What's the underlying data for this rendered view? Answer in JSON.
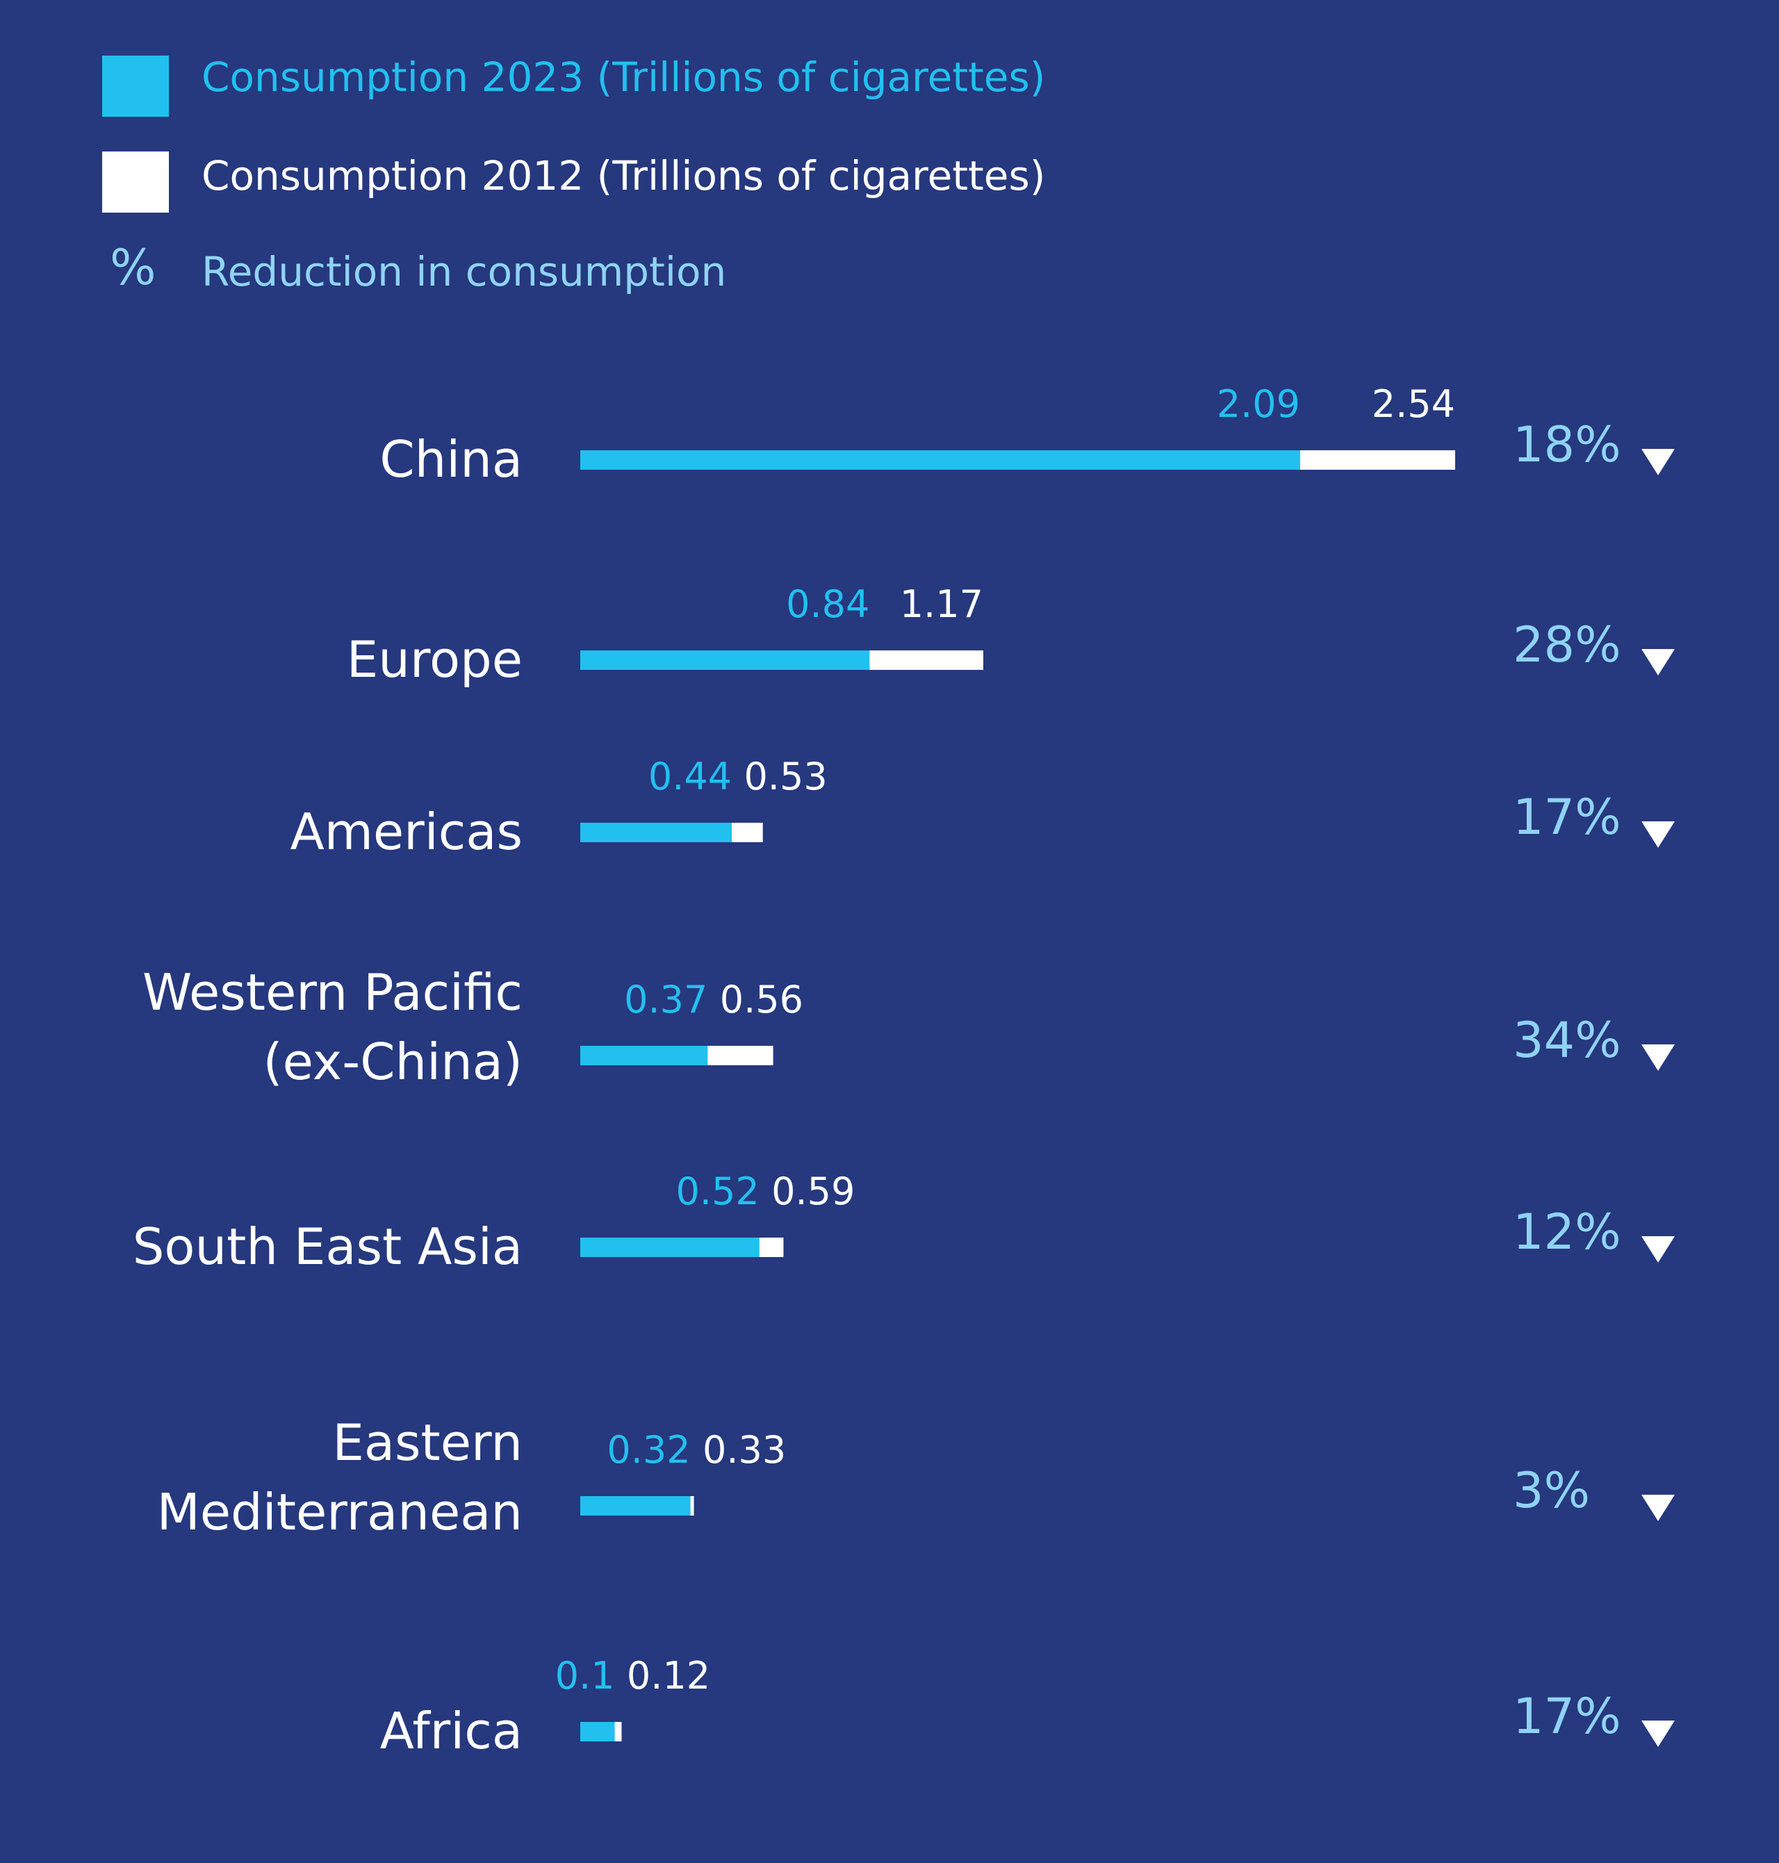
{
  "colors": {
    "background": "#26387e",
    "bar_2023": "#22c0ef",
    "bar_2012": "#ffffff",
    "reduction_text": "#8fd3f4",
    "label_text": "#ffffff"
  },
  "legend": {
    "item_2023": "Consumption 2023 (Trillions of cigarettes)",
    "item_2012": "Consumption 2012 (Trillions of cigarettes)",
    "pct_symbol": "%",
    "item_reduction": "Reduction in consumption"
  },
  "chart_data": {
    "type": "bar",
    "orientation": "horizontal",
    "categories": [
      "China",
      "Europe",
      "Americas",
      "Western Pacific\n(ex-China)",
      "South East Asia",
      "Eastern\nMediterranean",
      "Africa"
    ],
    "series": [
      {
        "name": "Consumption 2023 (Trillions of cigarettes)",
        "values": [
          2.09,
          0.84,
          0.44,
          0.37,
          0.52,
          0.32,
          0.1
        ]
      },
      {
        "name": "Consumption 2012 (Trillions of cigarettes)",
        "values": [
          2.54,
          1.17,
          0.53,
          0.56,
          0.59,
          0.33,
          0.12
        ]
      }
    ],
    "value_labels_2023": [
      "2.09",
      "0.84",
      "0.44",
      "0.37",
      "0.52",
      "0.32",
      "0.1"
    ],
    "value_labels_2012": [
      "2.54",
      "1.17",
      "0.53",
      "0.56",
      "0.59",
      "0.33",
      "0.12"
    ],
    "reduction_labels": [
      "18%",
      "28%",
      "17%",
      "34%",
      "12%",
      "3%",
      "17%"
    ],
    "reduction_symbol": "▼",
    "xlim": [
      0,
      2.54
    ],
    "grid": false,
    "legend_position": "top-left"
  }
}
